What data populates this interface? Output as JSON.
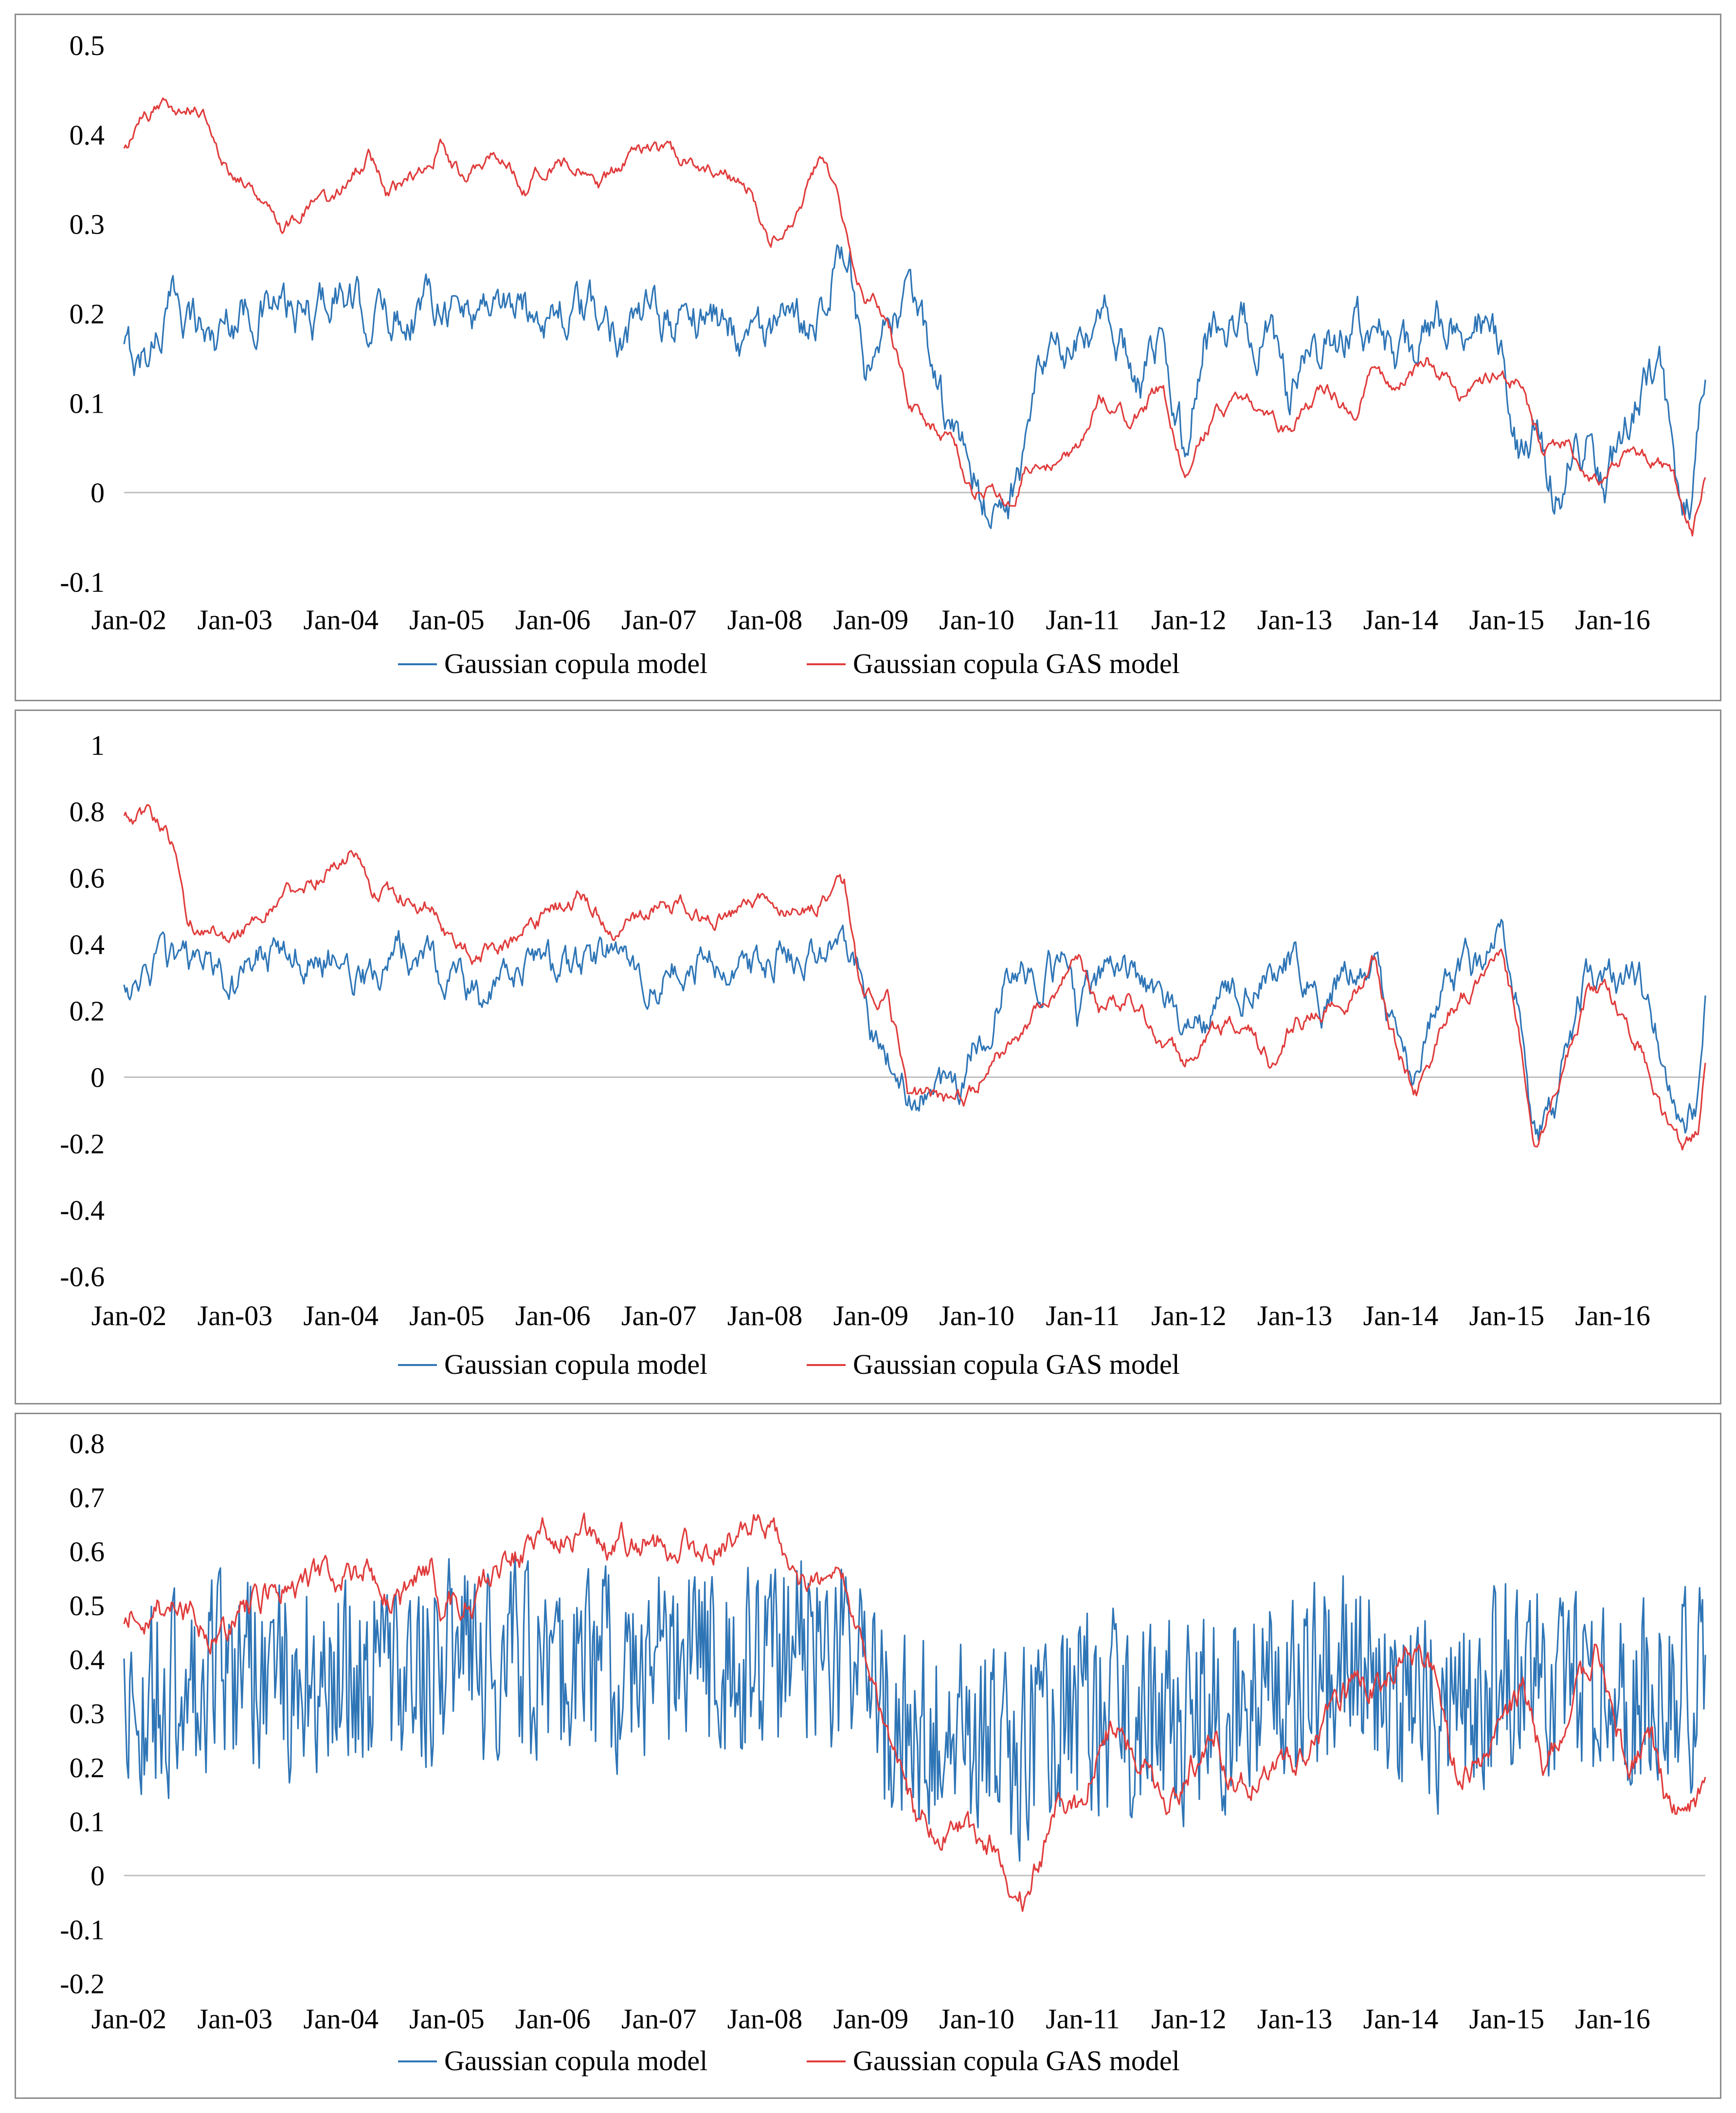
{
  "colors": {
    "gaussian": "#2e75b6",
    "gas": "#e03c3c",
    "zero_line": "#bfbfbf",
    "frame": "#8c8c8c"
  },
  "chart_data": [
    {
      "type": "line",
      "title": "",
      "xlabel": "",
      "ylabel": "",
      "ylim": [
        -0.1,
        0.5
      ],
      "yticks": [
        -0.1,
        0,
        0.1,
        0.2,
        0.3,
        0.4,
        0.5
      ],
      "yticklabels": [
        "-0.1",
        "0",
        "0.1",
        "0.2",
        "0.3",
        "0.4",
        "0.5"
      ],
      "xlim": [
        2002.0,
        2016.92
      ],
      "xticklabels": [
        "Jan-02",
        "Jan-03",
        "Jan-04",
        "Jan-05",
        "Jan-06",
        "Jan-07",
        "Jan-08",
        "Jan-09",
        "Jan-10",
        "Jan-11",
        "Jan-12",
        "Jan-13",
        "Jan-14",
        "Jan-15",
        "Jan-16"
      ],
      "legend": {
        "placement": "bottom-center",
        "entries": [
          "Gaussian copula model",
          "Gaussian copula GAS model"
        ]
      },
      "noise": [
        0.028,
        0.009
      ],
      "series": [
        {
          "name": "Gaussian copula model",
          "x": [
            2002.0,
            2002.15,
            2002.5,
            2002.85,
            2003.0,
            2003.25,
            2003.5,
            2003.75,
            2004.0,
            2004.2,
            2004.5,
            2004.8,
            2005.0,
            2005.2,
            2005.5,
            2005.8,
            2006.0,
            2006.5,
            2007.0,
            2007.5,
            2008.0,
            2008.3,
            2008.5,
            2008.75,
            2008.85,
            2009.0,
            2009.3,
            2009.5,
            2009.75,
            2010.0,
            2010.2,
            2010.4,
            2010.6,
            2010.8,
            2011.0,
            2011.3,
            2011.6,
            2011.8,
            2012.0,
            2012.2,
            2012.5,
            2012.8,
            2013.0,
            2013.3,
            2013.6,
            2013.85,
            2014.0,
            2014.2,
            2014.5,
            2014.8,
            2015.0,
            2015.1,
            2015.3,
            2015.5,
            2015.8,
            2016.0,
            2016.3,
            2016.5,
            2016.7,
            2016.8,
            2016.92
          ],
          "values": [
            0.155,
            0.145,
            0.22,
            0.17,
            0.2,
            0.21,
            0.2,
            0.19,
            0.23,
            0.2,
            0.2,
            0.21,
            0.23,
            0.2,
            0.22,
            0.2,
            0.21,
            0.19,
            0.19,
            0.2,
            0.18,
            0.17,
            0.2,
            0.27,
            0.25,
            0.1,
            0.2,
            0.2,
            0.08,
            0.02,
            -0.02,
            0.0,
            0.1,
            0.16,
            0.15,
            0.19,
            0.13,
            0.16,
            0.05,
            0.18,
            0.19,
            0.18,
            0.09,
            0.16,
            0.18,
            0.19,
            0.12,
            0.16,
            0.2,
            0.2,
            0.14,
            0.03,
            0.06,
            0.0,
            0.06,
            0.02,
            0.11,
            0.13,
            -0.03,
            0.0,
            0.15
          ]
        },
        {
          "name": "Gaussian copula GAS model",
          "x": [
            2002.0,
            2002.2,
            2002.4,
            2002.75,
            2002.9,
            2003.1,
            2003.4,
            2003.5,
            2003.75,
            2004.0,
            2004.3,
            2004.5,
            2004.8,
            2005.0,
            2005.2,
            2005.5,
            2005.8,
            2006.0,
            2006.3,
            2006.5,
            2006.8,
            2007.0,
            2007.3,
            2007.6,
            2007.9,
            2008.1,
            2008.4,
            2008.6,
            2008.9,
            2009.0,
            2009.2,
            2009.4,
            2009.6,
            2009.8,
            2010.0,
            2010.2,
            2010.4,
            2010.5,
            2010.8,
            2011.0,
            2011.2,
            2011.5,
            2011.8,
            2012.0,
            2012.3,
            2012.6,
            2012.8,
            2013.0,
            2013.3,
            2013.6,
            2013.8,
            2014.0,
            2014.3,
            2014.6,
            2014.9,
            2015.0,
            2015.2,
            2015.4,
            2015.6,
            2015.9,
            2016.2,
            2016.4,
            2016.6,
            2016.8,
            2016.92
          ],
          "values": [
            0.38,
            0.42,
            0.435,
            0.43,
            0.37,
            0.35,
            0.33,
            0.29,
            0.32,
            0.33,
            0.38,
            0.33,
            0.36,
            0.39,
            0.35,
            0.38,
            0.34,
            0.37,
            0.36,
            0.34,
            0.38,
            0.38,
            0.37,
            0.36,
            0.34,
            0.28,
            0.33,
            0.38,
            0.25,
            0.22,
            0.2,
            0.1,
            0.08,
            0.06,
            0.0,
            0.01,
            -0.02,
            0.03,
            0.03,
            0.05,
            0.11,
            0.08,
            0.12,
            0.02,
            0.09,
            0.11,
            0.08,
            0.07,
            0.12,
            0.09,
            0.14,
            0.11,
            0.15,
            0.11,
            0.13,
            0.13,
            0.12,
            0.04,
            0.06,
            0.01,
            0.05,
            0.04,
            0.02,
            -0.04,
            0.03
          ]
        }
      ]
    },
    {
      "type": "line",
      "title": "",
      "xlabel": "",
      "ylabel": "",
      "ylim": [
        -0.6,
        1.0
      ],
      "yticks": [
        -0.6,
        -0.4,
        -0.2,
        0,
        0.2,
        0.4,
        0.6,
        0.8,
        1
      ],
      "yticklabels": [
        "-0.6",
        "-0.4",
        "-0.2",
        "0",
        "0.2",
        "0.4",
        "0.6",
        "0.8",
        "1"
      ],
      "xlim": [
        2002.0,
        2016.92
      ],
      "xticklabels": [
        "Jan-02",
        "Jan-03",
        "Jan-04",
        "Jan-05",
        "Jan-06",
        "Jan-07",
        "Jan-08",
        "Jan-09",
        "Jan-10",
        "Jan-11",
        "Jan-12",
        "Jan-13",
        "Jan-14",
        "Jan-15",
        "Jan-16"
      ],
      "legend": {
        "placement": "bottom-center",
        "entries": [
          "Gaussian copula model",
          "Gaussian copula GAS model"
        ]
      },
      "noise": [
        0.06,
        0.028
      ],
      "series": [
        {
          "name": "Gaussian copula model",
          "x": [
            2002.0,
            2002.2,
            2002.5,
            2002.8,
            2003.0,
            2003.3,
            2003.6,
            2004.0,
            2004.3,
            2004.6,
            2005.0,
            2005.2,
            2005.4,
            2005.6,
            2005.9,
            2006.2,
            2006.6,
            2007.0,
            2007.4,
            2007.8,
            2008.2,
            2008.5,
            2008.8,
            2008.95,
            2009.1,
            2009.3,
            2009.5,
            2009.7,
            2009.9,
            2010.0,
            2010.3,
            2010.6,
            2010.9,
            2011.0,
            2011.3,
            2011.6,
            2011.9,
            2012.0,
            2012.3,
            2012.7,
            2013.0,
            2013.3,
            2013.6,
            2013.8,
            2014.0,
            2014.2,
            2014.4,
            2014.7,
            2015.0,
            2015.15,
            2015.3,
            2015.5,
            2015.8,
            2016.0,
            2016.3,
            2016.5,
            2016.7,
            2016.85,
            2016.92
          ],
          "values": [
            0.24,
            0.36,
            0.3,
            0.35,
            0.25,
            0.37,
            0.38,
            0.36,
            0.31,
            0.4,
            0.33,
            0.3,
            0.22,
            0.28,
            0.35,
            0.32,
            0.38,
            0.3,
            0.35,
            0.32,
            0.38,
            0.36,
            0.4,
            0.28,
            0.1,
            0.0,
            -0.08,
            -0.03,
            0.0,
            0.1,
            0.3,
            0.3,
            0.35,
            0.2,
            0.3,
            0.28,
            0.2,
            0.1,
            0.2,
            0.3,
            0.35,
            0.22,
            0.35,
            0.32,
            0.1,
            -0.03,
            0.25,
            0.32,
            0.4,
            0.22,
            -0.2,
            -0.1,
            0.3,
            0.3,
            0.3,
            0.1,
            -0.15,
            -0.1,
            0.2
          ]
        },
        {
          "name": "Gaussian copula GAS model",
          "x": [
            2002.0,
            2002.25,
            2002.45,
            2002.6,
            2002.9,
            2003.0,
            2003.3,
            2003.6,
            2004.0,
            2004.2,
            2004.4,
            2004.6,
            2004.9,
            2005.1,
            2005.3,
            2005.6,
            2006.0,
            2006.3,
            2006.6,
            2006.9,
            2007.0,
            2007.3,
            2007.6,
            2008.0,
            2008.3,
            2008.6,
            2008.8,
            2008.95,
            2009.2,
            2009.4,
            2009.6,
            2009.8,
            2010.0,
            2010.2,
            2010.5,
            2010.8,
            2011.0,
            2011.2,
            2011.5,
            2011.8,
            2012.0,
            2012.3,
            2012.6,
            2012.8,
            2013.0,
            2013.3,
            2013.5,
            2013.8,
            2014.0,
            2014.2,
            2014.5,
            2014.8,
            2015.0,
            2015.15,
            2015.3,
            2015.5,
            2015.8,
            2016.0,
            2016.3,
            2016.5,
            2016.7,
            2016.85,
            2016.92
          ],
          "values": [
            0.78,
            0.8,
            0.7,
            0.45,
            0.45,
            0.4,
            0.5,
            0.55,
            0.65,
            0.7,
            0.55,
            0.55,
            0.52,
            0.38,
            0.37,
            0.4,
            0.5,
            0.55,
            0.45,
            0.5,
            0.5,
            0.52,
            0.48,
            0.55,
            0.5,
            0.55,
            0.58,
            0.25,
            0.25,
            -0.05,
            -0.05,
            -0.08,
            -0.05,
            0.05,
            0.15,
            0.25,
            0.35,
            0.2,
            0.25,
            0.1,
            0.05,
            0.15,
            0.15,
            0.05,
            0.15,
            0.2,
            0.2,
            0.35,
            0.1,
            -0.05,
            0.2,
            0.3,
            0.35,
            0.15,
            -0.25,
            -0.05,
            0.25,
            0.25,
            0.1,
            -0.1,
            -0.2,
            -0.15,
            0.05
          ]
        }
      ]
    },
    {
      "type": "line",
      "title": "",
      "xlabel": "",
      "ylabel": "",
      "ylim": [
        -0.2,
        0.8
      ],
      "yticks": [
        -0.2,
        -0.1,
        0,
        0.1,
        0.2,
        0.3,
        0.4,
        0.5,
        0.6,
        0.7,
        0.8
      ],
      "yticklabels": [
        "-0.2",
        "-0.1",
        "0",
        "0.1",
        "0.2",
        "0.3",
        "0.4",
        "0.5",
        "0.6",
        "0.7",
        "0.8"
      ],
      "xlim": [
        2002.0,
        2016.92
      ],
      "xticklabels": [
        "Jan-02",
        "Jan-03",
        "Jan-04",
        "Jan-05",
        "Jan-06",
        "Jan-07",
        "Jan-08",
        "Jan-09",
        "Jan-10",
        "Jan-11",
        "Jan-12",
        "Jan-13",
        "Jan-14",
        "Jan-15",
        "Jan-16"
      ],
      "legend": {
        "placement": "bottom-center",
        "entries": [
          "Gaussian copula model",
          "Gaussian copula GAS model"
        ]
      },
      "noise": [
        0.16,
        0.03
      ],
      "series": [
        {
          "name": "Gaussian copula model",
          "x": [
            2002.0,
            2003.0,
            2004.0,
            2005.0,
            2006.0,
            2007.0,
            2008.0,
            2008.8,
            2009.0,
            2009.5,
            2010.0,
            2010.5,
            2011.0,
            2011.5,
            2012.0,
            2012.5,
            2013.0,
            2013.5,
            2014.0,
            2014.5,
            2015.0,
            2015.5,
            2016.0,
            2016.5,
            2016.92
          ],
          "values": [
            0.32,
            0.38,
            0.36,
            0.4,
            0.38,
            0.38,
            0.4,
            0.43,
            0.3,
            0.28,
            0.24,
            0.23,
            0.32,
            0.28,
            0.3,
            0.33,
            0.35,
            0.37,
            0.36,
            0.3,
            0.38,
            0.35,
            0.32,
            0.34,
            0.35
          ]
        },
        {
          "name": "Gaussian copula GAS model",
          "x": [
            2002.0,
            2002.3,
            2002.6,
            2002.9,
            2003.1,
            2003.4,
            2003.7,
            2004.0,
            2004.3,
            2004.6,
            2004.9,
            2005.0,
            2005.3,
            2005.5,
            2005.8,
            2006.0,
            2006.3,
            2006.6,
            2006.9,
            2007.2,
            2007.5,
            2007.7,
            2008.0,
            2008.15,
            2008.3,
            2008.5,
            2008.75,
            2008.95,
            2009.0,
            2009.3,
            2009.5,
            2009.8,
            2010.0,
            2010.3,
            2010.5,
            2010.7,
            2010.8,
            2011.0,
            2011.2,
            2011.4,
            2011.6,
            2011.9,
            2012.1,
            2012.3,
            2012.5,
            2012.7,
            2013.0,
            2013.3,
            2013.6,
            2013.9,
            2014.0,
            2014.2,
            2014.4,
            2014.6,
            2014.9,
            2015.0,
            2015.2,
            2015.4,
            2015.6,
            2015.9,
            2016.0,
            2016.2,
            2016.4,
            2016.6,
            2016.8,
            2016.92
          ],
          "values": [
            0.48,
            0.5,
            0.5,
            0.44,
            0.48,
            0.53,
            0.55,
            0.56,
            0.57,
            0.5,
            0.56,
            0.5,
            0.52,
            0.57,
            0.6,
            0.63,
            0.64,
            0.62,
            0.62,
            0.61,
            0.6,
            0.63,
            0.65,
            0.62,
            0.52,
            0.54,
            0.55,
            0.43,
            0.4,
            0.18,
            0.1,
            0.08,
            0.07,
            0.04,
            -0.06,
            0.05,
            0.12,
            0.12,
            0.25,
            0.28,
            0.2,
            0.15,
            0.22,
            0.28,
            0.14,
            0.2,
            0.2,
            0.28,
            0.38,
            0.34,
            0.4,
            0.4,
            0.36,
            0.18,
            0.25,
            0.3,
            0.34,
            0.2,
            0.3,
            0.42,
            0.35,
            0.18,
            0.25,
            0.1,
            0.12,
            0.17
          ]
        }
      ]
    }
  ]
}
